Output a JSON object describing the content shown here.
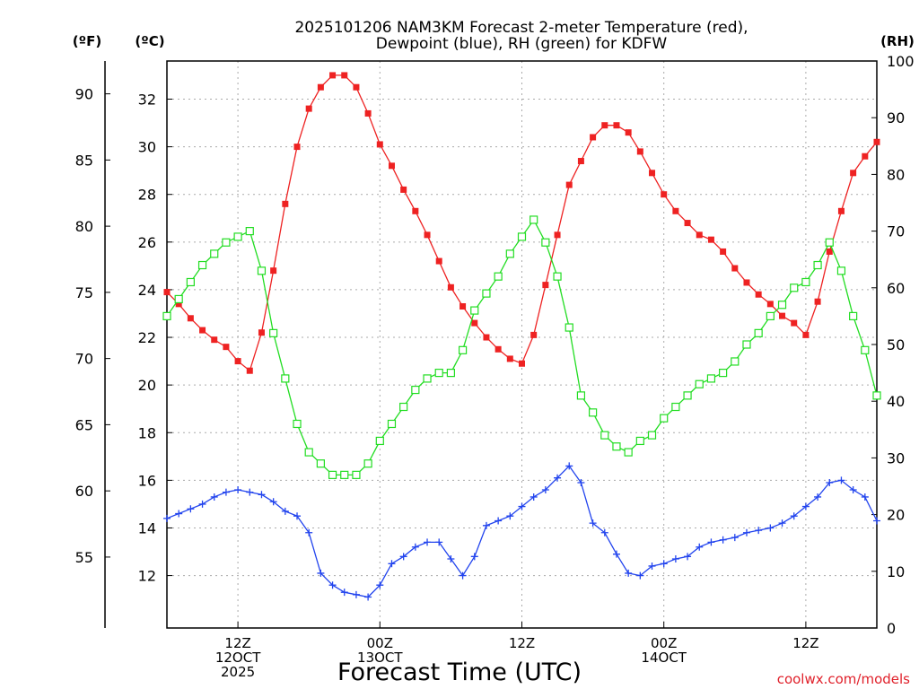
{
  "chart_data": {
    "type": "line",
    "title": [
      "2025101206 NAM3KM Forecast 2-meter Temperature (red),",
      "Dewpoint (blue), RH (green) for KDFW"
    ],
    "xlabel": "Forecast Time (UTC)",
    "credit": "coolwx.com/models",
    "left_unit_f": "(ºF)",
    "left_unit_c": "(ºC)",
    "right_unit": "(RH)",
    "x_range_hours": [
      6,
      66
    ],
    "x_ticks": [
      {
        "hour": 12,
        "lines": [
          "12Z",
          "12OCT",
          "2025"
        ]
      },
      {
        "hour": 24,
        "lines": [
          "00Z",
          "13OCT"
        ]
      },
      {
        "hour": 36,
        "lines": [
          "12Z"
        ]
      },
      {
        "hour": 48,
        "lines": [
          "00Z",
          "14OCT"
        ]
      },
      {
        "hour": 60,
        "lines": [
          "12Z"
        ]
      }
    ],
    "y_c_range": [
      9.8,
      33.6
    ],
    "y_c_ticks": [
      "12",
      "14",
      "16",
      "18",
      "20",
      "22",
      "24",
      "26",
      "28",
      "30",
      "32"
    ],
    "y_f_ticks": [
      "55",
      "60",
      "65",
      "70",
      "75",
      "80",
      "85",
      "90"
    ],
    "y_rh_range": [
      0,
      100
    ],
    "y_rh_ticks": [
      "0",
      "10",
      "20",
      "30",
      "40",
      "50",
      "60",
      "70",
      "80",
      "90",
      "100"
    ],
    "hours": [
      6,
      7,
      8,
      9,
      10,
      11,
      12,
      13,
      14,
      15,
      16,
      17,
      18,
      19,
      20,
      21,
      22,
      23,
      24,
      25,
      26,
      27,
      28,
      29,
      30,
      31,
      32,
      33,
      34,
      35,
      36,
      37,
      38,
      39,
      40,
      41,
      42,
      43,
      44,
      45,
      46,
      47,
      48,
      49,
      50,
      51,
      52,
      53,
      54,
      55,
      56,
      57,
      58,
      59,
      60,
      61,
      62,
      63,
      64,
      65,
      66
    ],
    "series": [
      {
        "name": "Temperature (ºC)",
        "color": "#ee2222",
        "marker": "filled-square",
        "values": [
          23.9,
          23.4,
          22.8,
          22.3,
          21.9,
          21.6,
          21.0,
          20.6,
          22.2,
          24.8,
          27.6,
          30.0,
          31.6,
          32.5,
          33.0,
          33.0,
          32.5,
          31.4,
          30.1,
          29.2,
          28.2,
          27.3,
          26.3,
          25.2,
          24.1,
          23.3,
          22.6,
          22.0,
          21.5,
          21.1,
          20.9,
          22.1,
          24.2,
          26.3,
          28.4,
          29.4,
          30.4,
          30.9,
          30.9,
          30.6,
          29.8,
          28.9,
          28.0,
          27.3,
          26.8,
          26.3,
          26.1,
          25.6,
          24.9,
          24.3,
          23.8,
          23.4,
          22.9,
          22.6,
          22.1,
          23.5,
          25.6,
          27.3,
          28.9,
          29.6,
          30.2
        ]
      },
      {
        "name": "Dewpoint (ºC)",
        "color": "#2244ee",
        "marker": "plus",
        "values": [
          14.4,
          14.6,
          14.8,
          15.0,
          15.3,
          15.5,
          15.6,
          15.5,
          15.4,
          15.1,
          14.7,
          14.5,
          13.8,
          12.1,
          11.6,
          11.3,
          11.2,
          11.1,
          11.6,
          12.5,
          12.8,
          13.2,
          13.4,
          13.4,
          12.7,
          12.0,
          12.8,
          14.1,
          14.3,
          14.5,
          14.9,
          15.3,
          15.6,
          16.1,
          16.6,
          15.9,
          14.2,
          13.8,
          12.9,
          12.1,
          12.0,
          12.4,
          12.5,
          12.7,
          12.8,
          13.2,
          13.4,
          13.5,
          13.6,
          13.8,
          13.9,
          14.0,
          14.2,
          14.5,
          14.9,
          15.3,
          15.9,
          16.0,
          15.6,
          15.3,
          14.3
        ]
      },
      {
        "name": "RH (%)",
        "color": "#22dd22",
        "marker": "open-square",
        "values": [
          55,
          58,
          61,
          64,
          66,
          68,
          69,
          70,
          63,
          52,
          44,
          36,
          31,
          29,
          27,
          27,
          27,
          29,
          33,
          36,
          39,
          42,
          44,
          45,
          45,
          49,
          56,
          59,
          62,
          66,
          69,
          72,
          68,
          62,
          53,
          41,
          38,
          34,
          32,
          31,
          33,
          34,
          37,
          39,
          41,
          43,
          44,
          45,
          47,
          50,
          52,
          55,
          57,
          60,
          61,
          64,
          68,
          63,
          55,
          49,
          41
        ]
      }
    ]
  }
}
